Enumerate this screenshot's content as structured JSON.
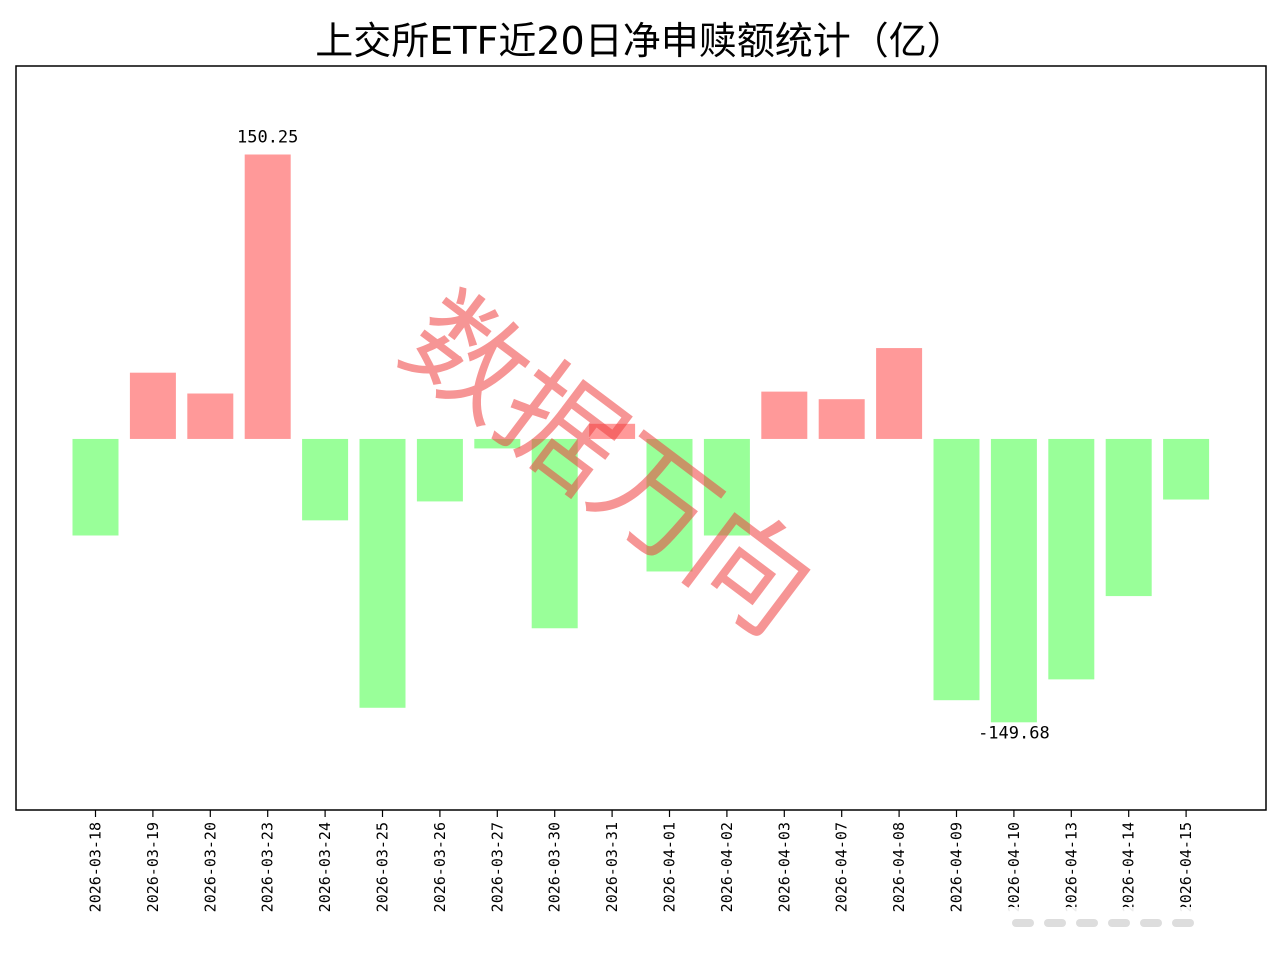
{
  "chart_data": {
    "type": "bar",
    "title": "上交所ETF近20日净申赎额统计（亿）",
    "categories": [
      "2026-03-18",
      "2026-03-19",
      "2026-03-20",
      "2026-03-23",
      "2026-03-24",
      "2026-03-25",
      "2026-03-26",
      "2026-03-27",
      "2026-03-30",
      "2026-03-31",
      "2026-04-01",
      "2026-04-02",
      "2026-04-03",
      "2026-04-07",
      "2026-04-08",
      "2026-04-09",
      "2026-04-10",
      "2026-04-13",
      "2026-04-14",
      "2026-04-15"
    ],
    "values": [
      -51,
      35,
      24,
      150.25,
      -43,
      -142,
      -33,
      -5,
      -100,
      8,
      -70,
      -51,
      25,
      21,
      48,
      -138,
      -149.68,
      -127,
      -83,
      -32
    ],
    "data_labels": [
      {
        "index": 3,
        "text": "150.25"
      },
      {
        "index": 16,
        "text": "-149.68"
      }
    ],
    "ylim": [
      -196,
      197
    ],
    "positive_color": "#ff9999",
    "negative_color": "#99ff99",
    "grid": false,
    "xlabel": "",
    "ylabel": ""
  },
  "watermark": {
    "text": "数据万向",
    "color": "#f04040"
  }
}
